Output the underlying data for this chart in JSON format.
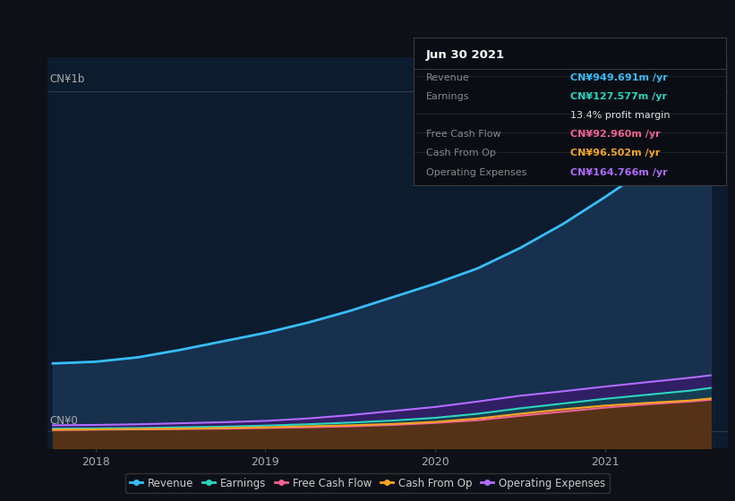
{
  "bg_color": "#0d1117",
  "plot_bg_color": "#0d1b2e",
  "ylabel_1b": "CN¥1b",
  "ylabel_0": "CN¥0",
  "x_ticks": [
    2018,
    2019,
    2020,
    2021
  ],
  "ylim_min": -50,
  "ylim_max": 1100,
  "y_top_line": 1000,
  "y_zero_line": 0,
  "infobox": {
    "title": "Jun 30 2021",
    "rows": [
      {
        "label": "Revenue",
        "value": "CN¥949.691m /yr",
        "value_color": "#38bdf8",
        "sep_before": true
      },
      {
        "label": "Earnings",
        "value": "CN¥127.577m /yr",
        "value_color": "#2dd4bf",
        "sep_before": true
      },
      {
        "label": "",
        "value": "13.4% profit margin",
        "value_color": "#dddddd",
        "sep_before": false
      },
      {
        "label": "Free Cash Flow",
        "value": "CN¥92.960m /yr",
        "value_color": "#f06292",
        "sep_before": true
      },
      {
        "label": "Cash From Op",
        "value": "CN¥96.502m /yr",
        "value_color": "#f5a623",
        "sep_before": true
      },
      {
        "label": "Operating Expenses",
        "value": "CN¥164.766m /yr",
        "value_color": "#b06cff",
        "sep_before": true
      }
    ]
  },
  "series": {
    "revenue": {
      "color": "#38bdf8",
      "fill_color": "#1a3a5c",
      "fill_alpha": 0.7,
      "x": [
        2017.75,
        2018.0,
        2018.25,
        2018.5,
        2018.75,
        2019.0,
        2019.25,
        2019.5,
        2019.75,
        2020.0,
        2020.25,
        2020.5,
        2020.75,
        2021.0,
        2021.25,
        2021.5,
        2021.62
      ],
      "y": [
        200,
        205,
        218,
        240,
        265,
        290,
        320,
        355,
        395,
        435,
        480,
        540,
        610,
        690,
        775,
        880,
        950
      ],
      "lw": 2.0,
      "label": "Revenue"
    },
    "opex": {
      "color": "#b06cff",
      "fill_color": "#3a1a6e",
      "fill_alpha": 0.75,
      "x": [
        2017.75,
        2018.0,
        2018.25,
        2018.5,
        2018.75,
        2019.0,
        2019.25,
        2019.5,
        2019.75,
        2020.0,
        2020.25,
        2020.5,
        2020.75,
        2021.0,
        2021.25,
        2021.5,
        2021.62
      ],
      "y": [
        18,
        19,
        21,
        24,
        27,
        31,
        38,
        48,
        60,
        72,
        88,
        105,
        118,
        132,
        145,
        158,
        165
      ],
      "lw": 1.5,
      "label": "Operating Expenses"
    },
    "earnings": {
      "color": "#2dd4bf",
      "fill_color": "#0d4a4a",
      "fill_alpha": 0.7,
      "x": [
        2017.75,
        2018.0,
        2018.25,
        2018.5,
        2018.75,
        2019.0,
        2019.25,
        2019.5,
        2019.75,
        2020.0,
        2020.25,
        2020.5,
        2020.75,
        2021.0,
        2021.25,
        2021.5,
        2021.62
      ],
      "y": [
        8,
        9,
        10,
        12,
        14,
        17,
        21,
        26,
        32,
        40,
        52,
        68,
        82,
        96,
        108,
        120,
        128
      ],
      "lw": 1.5,
      "label": "Earnings"
    },
    "fcf": {
      "color": "#f06292",
      "fill_color": "#6a1a3a",
      "fill_alpha": 0.65,
      "x": [
        2017.75,
        2018.0,
        2018.25,
        2018.5,
        2018.75,
        2019.0,
        2019.25,
        2019.5,
        2019.75,
        2020.0,
        2020.25,
        2020.5,
        2020.75,
        2021.0,
        2021.25,
        2021.5,
        2021.62
      ],
      "y": [
        4,
        5,
        6,
        7,
        8,
        10,
        12,
        15,
        19,
        25,
        33,
        46,
        58,
        70,
        80,
        88,
        93
      ],
      "lw": 1.5,
      "label": "Free Cash Flow"
    },
    "cashfromop": {
      "color": "#f5a623",
      "fill_color": "#5a3a00",
      "fill_alpha": 0.65,
      "x": [
        2017.75,
        2018.0,
        2018.25,
        2018.5,
        2018.75,
        2019.0,
        2019.25,
        2019.5,
        2019.75,
        2020.0,
        2020.25,
        2020.5,
        2020.75,
        2021.0,
        2021.25,
        2021.5,
        2021.62
      ],
      "y": [
        5,
        6,
        7,
        8,
        10,
        12,
        15,
        18,
        22,
        28,
        38,
        52,
        65,
        76,
        84,
        91,
        97
      ],
      "lw": 1.5,
      "label": "Cash From Op"
    }
  },
  "legend": [
    {
      "label": "Revenue",
      "color": "#38bdf8"
    },
    {
      "label": "Earnings",
      "color": "#2dd4bf"
    },
    {
      "label": "Free Cash Flow",
      "color": "#f06292"
    },
    {
      "label": "Cash From Op",
      "color": "#f5a623"
    },
    {
      "label": "Operating Expenses",
      "color": "#b06cff"
    }
  ]
}
